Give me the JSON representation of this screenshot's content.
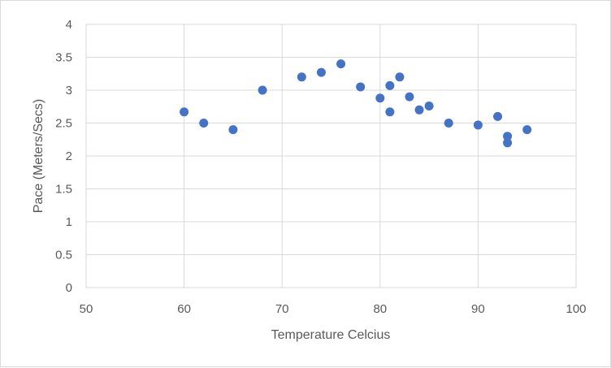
{
  "chart_data": {
    "type": "scatter",
    "xlabel": "Temperature Celcius",
    "ylabel": "Pace (Meters/Secs)",
    "xlim": [
      50,
      100
    ],
    "ylim": [
      0,
      4
    ],
    "x_ticks": [
      "50",
      "60",
      "70",
      "80",
      "90",
      "100"
    ],
    "y_ticks": [
      "0",
      "0.5",
      "1",
      "1.5",
      "2",
      "2.5",
      "3",
      "3.5",
      "4"
    ],
    "grid": true,
    "legend": "none",
    "marker_color": "#4472c4",
    "points": [
      {
        "x": 60,
        "y": 2.67
      },
      {
        "x": 62,
        "y": 2.5
      },
      {
        "x": 65,
        "y": 2.4
      },
      {
        "x": 68,
        "y": 3.0
      },
      {
        "x": 72,
        "y": 3.2
      },
      {
        "x": 74,
        "y": 3.27
      },
      {
        "x": 76,
        "y": 3.4
      },
      {
        "x": 78,
        "y": 3.05
      },
      {
        "x": 80,
        "y": 2.88
      },
      {
        "x": 81,
        "y": 3.07
      },
      {
        "x": 81,
        "y": 2.67
      },
      {
        "x": 82,
        "y": 3.2
      },
      {
        "x": 83,
        "y": 2.9
      },
      {
        "x": 84,
        "y": 2.7
      },
      {
        "x": 85,
        "y": 2.76
      },
      {
        "x": 87,
        "y": 2.5
      },
      {
        "x": 90,
        "y": 2.47
      },
      {
        "x": 92,
        "y": 2.6
      },
      {
        "x": 93,
        "y": 2.3
      },
      {
        "x": 93,
        "y": 2.2
      },
      {
        "x": 95,
        "y": 2.4
      }
    ]
  }
}
